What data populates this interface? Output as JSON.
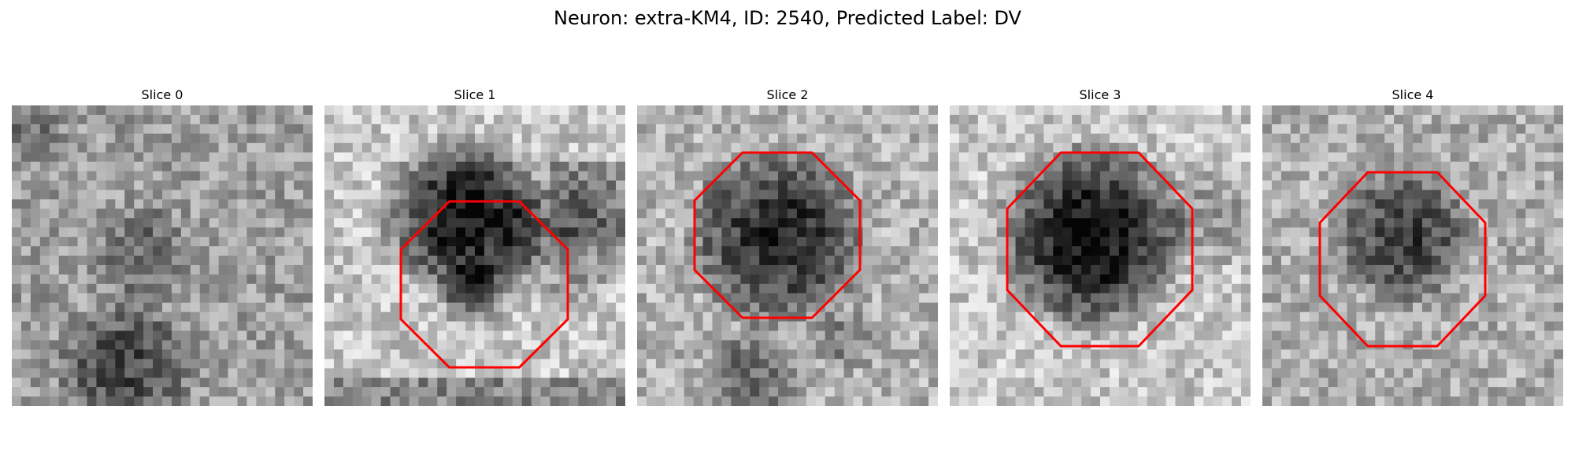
{
  "figure": {
    "title": "Neuron: extra-KM4, ID: 2540, Predicted Label: DV"
  },
  "panels": [
    {
      "title": "Slice 0",
      "contour": false
    },
    {
      "title": "Slice 1",
      "contour": true
    },
    {
      "title": "Slice 2",
      "contour": true
    },
    {
      "title": "Slice 3",
      "contour": true
    },
    {
      "title": "Slice 4",
      "contour": true
    }
  ],
  "colors": {
    "contour": "#ff0000",
    "background": "#ffffff"
  },
  "colormap": "gray"
}
